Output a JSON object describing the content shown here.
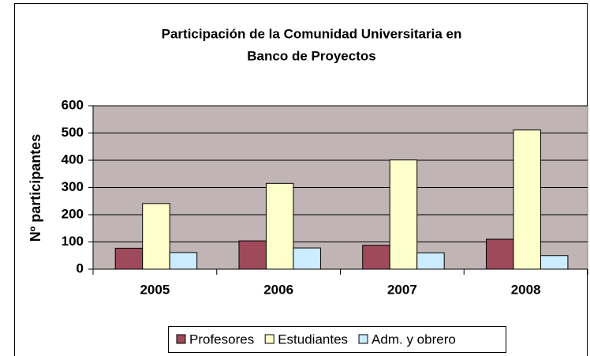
{
  "chart_data": {
    "type": "bar",
    "title": [
      "Participación de la Comunidad Universitaria en",
      "Banco de Proyectos"
    ],
    "y_label": "Nº participantes",
    "categories": [
      "2005",
      "2006",
      "2007",
      "2008"
    ],
    "series": [
      {
        "name": "Profesores",
        "color": "#9e4a5a",
        "values": [
          77,
          104,
          88,
          110
        ]
      },
      {
        "name": "Estudiantes",
        "color": "#ffffcc",
        "values": [
          241,
          315,
          401,
          511
        ]
      },
      {
        "name": "Adm. y obrero",
        "color": "#ccecff",
        "values": [
          61,
          78,
          60,
          50
        ]
      }
    ],
    "ylim": [
      0,
      600
    ],
    "yticks": [
      0,
      100,
      200,
      300,
      400,
      500,
      600
    ],
    "grid": true,
    "plot_background": "#c0b4b4",
    "legend": "bottom"
  }
}
